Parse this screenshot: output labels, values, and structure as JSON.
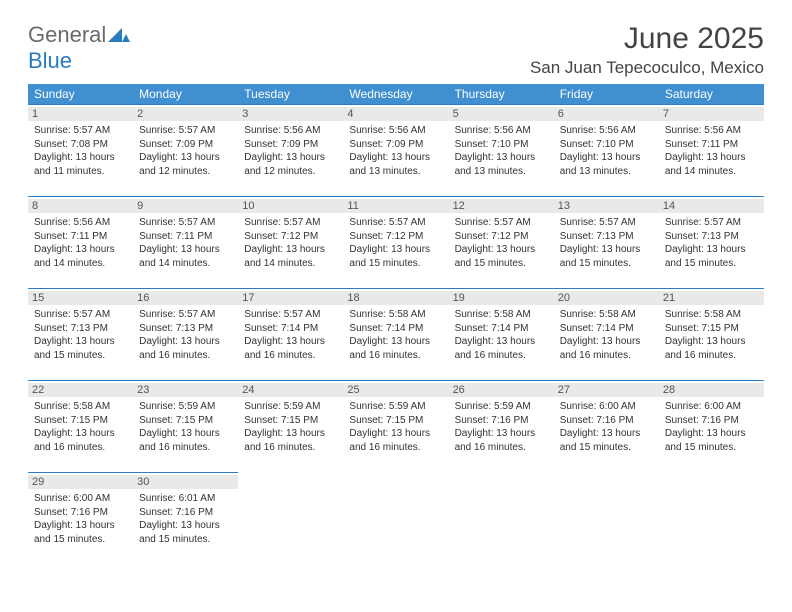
{
  "logo": {
    "general": "General",
    "blue": "Blue"
  },
  "title": "June 2025",
  "location": "San Juan Tepecoculco, Mexico",
  "colors": {
    "header_bg": "#3f8fd1",
    "header_text": "#ffffff",
    "row_border": "#2a7bbf",
    "daynum_bg": "#e9e9e9",
    "logo_gray": "#6b6b6b",
    "logo_blue": "#2a7bbf"
  },
  "day_headers": [
    "Sunday",
    "Monday",
    "Tuesday",
    "Wednesday",
    "Thursday",
    "Friday",
    "Saturday"
  ],
  "weeks": [
    [
      {
        "n": "1",
        "sunrise": "5:57 AM",
        "sunset": "7:08 PM",
        "dh": "13",
        "dm": "11"
      },
      {
        "n": "2",
        "sunrise": "5:57 AM",
        "sunset": "7:09 PM",
        "dh": "13",
        "dm": "12"
      },
      {
        "n": "3",
        "sunrise": "5:56 AM",
        "sunset": "7:09 PM",
        "dh": "13",
        "dm": "12"
      },
      {
        "n": "4",
        "sunrise": "5:56 AM",
        "sunset": "7:09 PM",
        "dh": "13",
        "dm": "13"
      },
      {
        "n": "5",
        "sunrise": "5:56 AM",
        "sunset": "7:10 PM",
        "dh": "13",
        "dm": "13"
      },
      {
        "n": "6",
        "sunrise": "5:56 AM",
        "sunset": "7:10 PM",
        "dh": "13",
        "dm": "13"
      },
      {
        "n": "7",
        "sunrise": "5:56 AM",
        "sunset": "7:11 PM",
        "dh": "13",
        "dm": "14"
      }
    ],
    [
      {
        "n": "8",
        "sunrise": "5:56 AM",
        "sunset": "7:11 PM",
        "dh": "13",
        "dm": "14"
      },
      {
        "n": "9",
        "sunrise": "5:57 AM",
        "sunset": "7:11 PM",
        "dh": "13",
        "dm": "14"
      },
      {
        "n": "10",
        "sunrise": "5:57 AM",
        "sunset": "7:12 PM",
        "dh": "13",
        "dm": "14"
      },
      {
        "n": "11",
        "sunrise": "5:57 AM",
        "sunset": "7:12 PM",
        "dh": "13",
        "dm": "15"
      },
      {
        "n": "12",
        "sunrise": "5:57 AM",
        "sunset": "7:12 PM",
        "dh": "13",
        "dm": "15"
      },
      {
        "n": "13",
        "sunrise": "5:57 AM",
        "sunset": "7:13 PM",
        "dh": "13",
        "dm": "15"
      },
      {
        "n": "14",
        "sunrise": "5:57 AM",
        "sunset": "7:13 PM",
        "dh": "13",
        "dm": "15"
      }
    ],
    [
      {
        "n": "15",
        "sunrise": "5:57 AM",
        "sunset": "7:13 PM",
        "dh": "13",
        "dm": "15"
      },
      {
        "n": "16",
        "sunrise": "5:57 AM",
        "sunset": "7:13 PM",
        "dh": "13",
        "dm": "16"
      },
      {
        "n": "17",
        "sunrise": "5:57 AM",
        "sunset": "7:14 PM",
        "dh": "13",
        "dm": "16"
      },
      {
        "n": "18",
        "sunrise": "5:58 AM",
        "sunset": "7:14 PM",
        "dh": "13",
        "dm": "16"
      },
      {
        "n": "19",
        "sunrise": "5:58 AM",
        "sunset": "7:14 PM",
        "dh": "13",
        "dm": "16"
      },
      {
        "n": "20",
        "sunrise": "5:58 AM",
        "sunset": "7:14 PM",
        "dh": "13",
        "dm": "16"
      },
      {
        "n": "21",
        "sunrise": "5:58 AM",
        "sunset": "7:15 PM",
        "dh": "13",
        "dm": "16"
      }
    ],
    [
      {
        "n": "22",
        "sunrise": "5:58 AM",
        "sunset": "7:15 PM",
        "dh": "13",
        "dm": "16"
      },
      {
        "n": "23",
        "sunrise": "5:59 AM",
        "sunset": "7:15 PM",
        "dh": "13",
        "dm": "16"
      },
      {
        "n": "24",
        "sunrise": "5:59 AM",
        "sunset": "7:15 PM",
        "dh": "13",
        "dm": "16"
      },
      {
        "n": "25",
        "sunrise": "5:59 AM",
        "sunset": "7:15 PM",
        "dh": "13",
        "dm": "16"
      },
      {
        "n": "26",
        "sunrise": "5:59 AM",
        "sunset": "7:16 PM",
        "dh": "13",
        "dm": "16"
      },
      {
        "n": "27",
        "sunrise": "6:00 AM",
        "sunset": "7:16 PM",
        "dh": "13",
        "dm": "15"
      },
      {
        "n": "28",
        "sunrise": "6:00 AM",
        "sunset": "7:16 PM",
        "dh": "13",
        "dm": "15"
      }
    ],
    [
      {
        "n": "29",
        "sunrise": "6:00 AM",
        "sunset": "7:16 PM",
        "dh": "13",
        "dm": "15"
      },
      {
        "n": "30",
        "sunrise": "6:01 AM",
        "sunset": "7:16 PM",
        "dh": "13",
        "dm": "15"
      },
      null,
      null,
      null,
      null,
      null
    ]
  ]
}
